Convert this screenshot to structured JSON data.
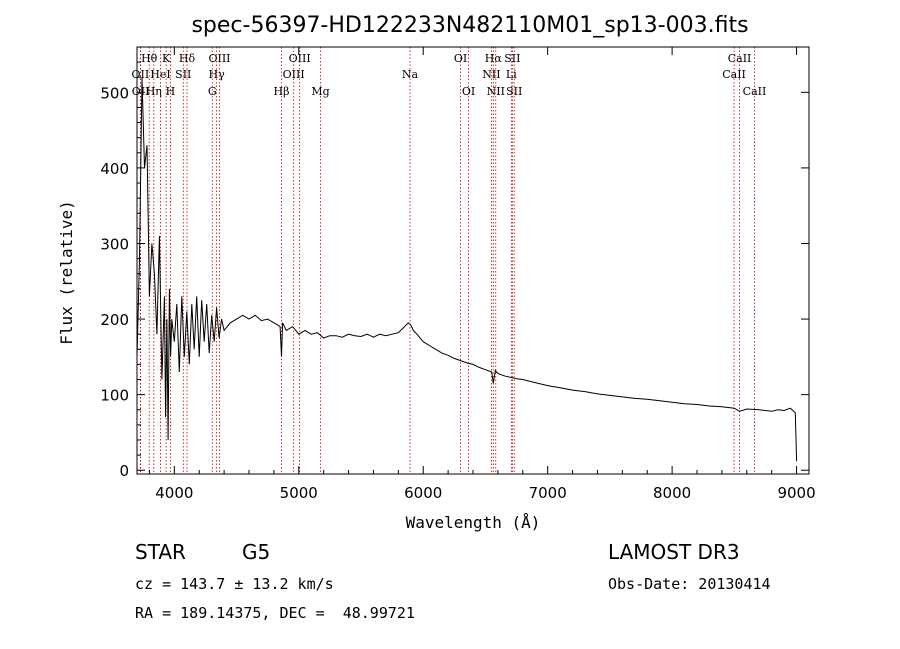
{
  "chart_data": {
    "type": "line",
    "title": "spec-56397-HD122233N482110M01_sp13-003.fits",
    "xlabel": "Wavelength (Å)",
    "ylabel": "Flux (relative)",
    "xlim": [
      3700,
      9100
    ],
    "ylim": [
      -5,
      560
    ],
    "xticks": [
      4000,
      5000,
      6000,
      7000,
      8000,
      9000
    ],
    "yticks": [
      0,
      100,
      200,
      300,
      400,
      500
    ],
    "line_color": "#000000",
    "marker_color": "#c00000",
    "series": [
      {
        "name": "flux",
        "x": [
          3700,
          3720,
          3740,
          3760,
          3780,
          3800,
          3820,
          3840,
          3860,
          3880,
          3900,
          3920,
          3930,
          3940,
          3950,
          3960,
          3970,
          3980,
          4000,
          4020,
          4040,
          4060,
          4080,
          4100,
          4120,
          4140,
          4160,
          4180,
          4200,
          4220,
          4240,
          4260,
          4280,
          4300,
          4320,
          4340,
          4360,
          4380,
          4400,
          4450,
          4500,
          4550,
          4600,
          4650,
          4700,
          4750,
          4800,
          4850,
          4861,
          4870,
          4900,
          4950,
          5000,
          5050,
          5100,
          5150,
          5200,
          5250,
          5300,
          5350,
          5400,
          5450,
          5500,
          5550,
          5600,
          5650,
          5700,
          5750,
          5800,
          5850,
          5880,
          5900,
          5920,
          5950,
          6000,
          6050,
          6100,
          6150,
          6200,
          6250,
          6300,
          6350,
          6400,
          6450,
          6500,
          6550,
          6563,
          6580,
          6600,
          6650,
          6700,
          6750,
          6800,
          6900,
          7000,
          7100,
          7200,
          7300,
          7400,
          7500,
          7600,
          7700,
          7800,
          7900,
          8000,
          8100,
          8200,
          8300,
          8400,
          8500,
          8542,
          8600,
          8700,
          8800,
          8850,
          8900,
          8950,
          8990,
          9000
        ],
        "values": [
          150,
          280,
          520,
          400,
          430,
          230,
          300,
          260,
          180,
          310,
          120,
          230,
          70,
          200,
          40,
          240,
          150,
          200,
          170,
          220,
          130,
          230,
          150,
          210,
          140,
          220,
          160,
          230,
          150,
          225,
          170,
          220,
          155,
          205,
          170,
          215,
          175,
          200,
          185,
          195,
          200,
          205,
          200,
          205,
          198,
          200,
          195,
          190,
          150,
          195,
          185,
          190,
          180,
          185,
          180,
          182,
          175,
          178,
          178,
          176,
          180,
          178,
          177,
          180,
          176,
          180,
          178,
          180,
          182,
          190,
          195,
          192,
          185,
          180,
          170,
          165,
          160,
          155,
          152,
          148,
          145,
          142,
          140,
          136,
          133,
          130,
          115,
          132,
          128,
          125,
          123,
          121,
          120,
          116,
          112,
          109,
          106,
          104,
          101,
          99,
          97,
          95,
          94,
          92,
          90,
          88,
          87,
          85,
          84,
          82,
          78,
          81,
          80,
          78,
          80,
          79,
          82,
          76,
          12
        ]
      }
    ],
    "spectral_lines": [
      {
        "label": "OII",
        "wavelength": 3727,
        "row": 2
      },
      {
        "label": "OII",
        "wavelength": 3729,
        "row": 3
      },
      {
        "label": "Hθ",
        "wavelength": 3798,
        "row": 1
      },
      {
        "label": "Hη",
        "wavelength": 3835,
        "row": 3
      },
      {
        "label": "HeI",
        "wavelength": 3889,
        "row": 2
      },
      {
        "label": "K",
        "wavelength": 3934,
        "row": 1
      },
      {
        "label": "H",
        "wavelength": 3969,
        "row": 3
      },
      {
        "label": "SII",
        "wavelength": 4072,
        "row": 2
      },
      {
        "label": "Hδ",
        "wavelength": 4102,
        "row": 1
      },
      {
        "label": "G",
        "wavelength": 4305,
        "row": 3
      },
      {
        "label": "Hγ",
        "wavelength": 4340,
        "row": 2
      },
      {
        "label": "OIII",
        "wavelength": 4363,
        "row": 1
      },
      {
        "label": "Hβ",
        "wavelength": 4861,
        "row": 3
      },
      {
        "label": "OIII",
        "wavelength": 4959,
        "row": 2
      },
      {
        "label": "OIII",
        "wavelength": 5007,
        "row": 1
      },
      {
        "label": "Mg",
        "wavelength": 5175,
        "row": 3
      },
      {
        "label": "Na",
        "wavelength": 5894,
        "row": 2
      },
      {
        "label": "OI",
        "wavelength": 6300,
        "row": 1
      },
      {
        "label": "OI",
        "wavelength": 6364,
        "row": 3
      },
      {
        "label": "NII",
        "wavelength": 6548,
        "row": 2
      },
      {
        "label": "Hα",
        "wavelength": 6563,
        "row": 1
      },
      {
        "label": "NII",
        "wavelength": 6583,
        "row": 3
      },
      {
        "label": "SII",
        "wavelength": 6716,
        "row": 1
      },
      {
        "label": "Li",
        "wavelength": 6708,
        "row": 2
      },
      {
        "label": "SII",
        "wavelength": 6731,
        "row": 3
      },
      {
        "label": "CaII",
        "wavelength": 8498,
        "row": 2
      },
      {
        "label": "CaII",
        "wavelength": 8542,
        "row": 1
      },
      {
        "label": "CaII",
        "wavelength": 8662,
        "row": 3
      }
    ]
  },
  "info": {
    "object_class": "STAR",
    "subclass": "G5",
    "survey": "LAMOST DR3",
    "redshift": "cz = 143.7 ± 13.2 km/s",
    "obs_date": "Obs-Date: 20130414",
    "coords": "RA = 189.14375, DEC =  48.99721"
  }
}
